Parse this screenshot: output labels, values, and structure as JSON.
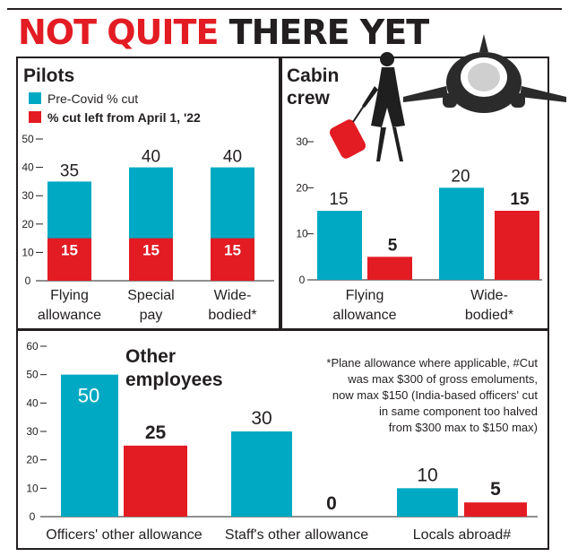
{
  "headline": {
    "part1": "NOT QUITE",
    "part2": "THERE YET"
  },
  "colors": {
    "pre_covid": "#00a9c3",
    "cut_left": "#e31b23",
    "text": "#231f20"
  },
  "icons": [
    "flight-attendant-icon",
    "airplane-icon"
  ],
  "chart_data": [
    {
      "type": "bar",
      "title": "Pilots",
      "legend": [
        "Pre-Covid % cut",
        "% cut left from April 1, '22"
      ],
      "categories": [
        [
          "Flying",
          "allowance"
        ],
        [
          "Special",
          "pay"
        ],
        [
          "Wide-",
          "bodied*"
        ]
      ],
      "series": [
        {
          "name": "Pre-Covid % cut",
          "values": [
            35,
            40,
            40
          ]
        },
        {
          "name": "% cut left from April 1, '22",
          "values": [
            15,
            15,
            15
          ]
        }
      ],
      "layout": "overlay",
      "yticks": [
        0,
        10,
        20,
        30,
        40,
        50
      ],
      "ylim": [
        0,
        50
      ]
    },
    {
      "type": "bar",
      "title": "Cabin crew",
      "categories": [
        [
          "Flying",
          "allowance"
        ],
        [
          "Wide-",
          "bodied*"
        ]
      ],
      "series": [
        {
          "name": "Pre-Covid % cut",
          "values": [
            15,
            20
          ]
        },
        {
          "name": "% cut left from April 1, '22",
          "values": [
            5,
            15
          ]
        }
      ],
      "layout": "grouped",
      "yticks": [
        0,
        10,
        20,
        30
      ],
      "ylim": [
        0,
        30
      ]
    },
    {
      "type": "bar",
      "title": "Other employees",
      "categories": [
        [
          "Officers' other allowance"
        ],
        [
          "Staff's other allowance"
        ],
        [
          "Locals abroad#"
        ]
      ],
      "series": [
        {
          "name": "Pre-Covid % cut",
          "values": [
            50,
            30,
            10
          ]
        },
        {
          "name": "% cut left from April 1, '22",
          "values": [
            25,
            0,
            5
          ]
        }
      ],
      "layout": "grouped",
      "yticks": [
        0,
        10,
        20,
        30,
        40,
        50,
        60
      ],
      "ylim": [
        0,
        60
      ],
      "note": [
        "*Plane allowance where applicable, #Cut",
        "was max $300 of gross emoluments,",
        "now max $150 (India-based officers' cut",
        "in same component too halved",
        "from $300 max to $150 max)"
      ]
    }
  ]
}
